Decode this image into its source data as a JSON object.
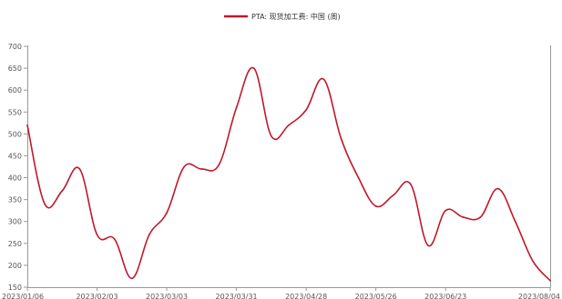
{
  "chart_data": {
    "type": "line",
    "title": "",
    "xlabel": "",
    "ylabel": "",
    "ylim": [
      150,
      700
    ],
    "yticks": [
      150,
      200,
      250,
      300,
      350,
      400,
      450,
      500,
      550,
      600,
      650,
      700
    ],
    "grid": false,
    "legend_position": "top-center",
    "x_tick_labels": [
      "2023/01/06",
      "2023/02/03",
      "2023/03/03",
      "2023/03/31",
      "2023/04/28",
      "2023/05/26",
      "2023/06/23",
      "2023/08/04"
    ],
    "series": [
      {
        "name": "PTA: 现货加工费: 中国 (周)",
        "color": "#c0182b",
        "x": [
          "2023/01/06",
          "2023/01/13",
          "2023/01/20",
          "2023/01/27",
          "2023/02/03",
          "2023/02/10",
          "2023/02/17",
          "2023/02/24",
          "2023/03/03",
          "2023/03/10",
          "2023/03/17",
          "2023/03/24",
          "2023/03/31",
          "2023/04/07",
          "2023/04/14",
          "2023/04/21",
          "2023/04/28",
          "2023/05/05",
          "2023/05/12",
          "2023/05/19",
          "2023/05/26",
          "2023/06/02",
          "2023/06/09",
          "2023/06/16",
          "2023/06/23",
          "2023/06/30",
          "2023/07/07",
          "2023/07/14",
          "2023/07/21",
          "2023/07/28",
          "2023/08/04"
        ],
        "values": [
          520,
          340,
          370,
          420,
          270,
          260,
          170,
          270,
          320,
          425,
          420,
          430,
          560,
          650,
          495,
          520,
          555,
          625,
          490,
          400,
          335,
          360,
          385,
          245,
          325,
          310,
          310,
          375,
          300,
          210,
          165
        ]
      }
    ]
  }
}
